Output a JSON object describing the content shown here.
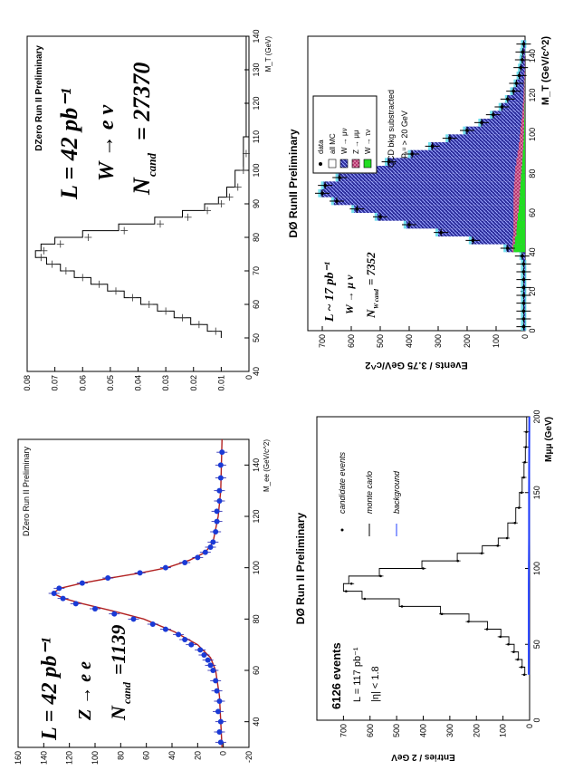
{
  "chart_data": [
    {
      "id": "z_ee",
      "type": "line",
      "title": "DZero Run II Preliminary",
      "xlabel": "M_ee (GeV/c^2)",
      "ylabel": "",
      "xlim": [
        30,
        150
      ],
      "ylim": [
        -20,
        160
      ],
      "x_ticks": [
        "40",
        "60",
        "80",
        "100",
        "120",
        "140"
      ],
      "y_ticks": [
        "-20",
        "0",
        "20",
        "40",
        "60",
        "80",
        "100",
        "120",
        "140",
        "160"
      ],
      "annotations": [
        "L = 42 pb⁻¹",
        "Z → e e",
        "N",
        "cand",
        "=1139"
      ],
      "series": [
        {
          "name": "data",
          "points": [
            [
              32,
              2
            ],
            [
              36,
              3
            ],
            [
              40,
              2
            ],
            [
              44,
              4
            ],
            [
              48,
              3
            ],
            [
              52,
              5
            ],
            [
              56,
              6
            ],
            [
              60,
              8
            ],
            [
              62,
              10
            ],
            [
              64,
              12
            ],
            [
              66,
              15
            ],
            [
              68,
              18
            ],
            [
              70,
              25
            ],
            [
              72,
              30
            ],
            [
              74,
              35
            ],
            [
              76,
              45
            ],
            [
              78,
              55
            ],
            [
              80,
              70
            ],
            [
              82,
              85
            ],
            [
              84,
              100
            ],
            [
              86,
              115
            ],
            [
              88,
              125
            ],
            [
              90,
              132
            ],
            [
              92,
              128
            ],
            [
              94,
              110
            ],
            [
              96,
              90
            ],
            [
              98,
              65
            ],
            [
              100,
              45
            ],
            [
              102,
              30
            ],
            [
              104,
              20
            ],
            [
              106,
              14
            ],
            [
              108,
              10
            ],
            [
              110,
              8
            ],
            [
              114,
              6
            ],
            [
              118,
              5
            ],
            [
              122,
              5
            ],
            [
              126,
              3
            ],
            [
              130,
              3
            ],
            [
              135,
              2
            ],
            [
              140,
              2
            ],
            [
              145,
              1
            ]
          ]
        },
        {
          "name": "fit",
          "points": [
            [
              30,
              1
            ],
            [
              40,
              2
            ],
            [
              50,
              3
            ],
            [
              60,
              6
            ],
            [
              65,
              10
            ],
            [
              70,
              20
            ],
            [
              75,
              38
            ],
            [
              80,
              62
            ],
            [
              83,
              85
            ],
            [
              86,
              110
            ],
            [
              88,
              124
            ],
            [
              90,
              133
            ],
            [
              92,
              127
            ],
            [
              94,
              110
            ],
            [
              96,
              88
            ],
            [
              98,
              64
            ],
            [
              100,
              44
            ],
            [
              103,
              26
            ],
            [
              106,
              14
            ],
            [
              110,
              8
            ],
            [
              120,
              4
            ],
            [
              130,
              2
            ],
            [
              150,
              1
            ]
          ]
        }
      ]
    },
    {
      "id": "w_enu",
      "type": "line",
      "title": "DZero Run II Preliminary",
      "xlabel": "M_T (GeV)",
      "ylabel": "",
      "xlim": [
        40,
        140
      ],
      "ylim": [
        0,
        0.08
      ],
      "x_ticks": [
        "40",
        "50",
        "60",
        "70",
        "80",
        "90",
        "100",
        "110",
        "120",
        "130",
        "140"
      ],
      "y_ticks": [
        "0",
        "0.01",
        "0.02",
        "0.03",
        "0.04",
        "0.05",
        "0.06",
        "0.07",
        "0.08"
      ],
      "annotations": [
        "L = 42 pb⁻¹",
        "W → e ν",
        "N",
        "cand",
        "= 27370"
      ],
      "series": [
        {
          "name": "data",
          "points": [
            [
              52,
              0.012
            ],
            [
              54,
              0.018
            ],
            [
              56,
              0.024
            ],
            [
              58,
              0.03
            ],
            [
              60,
              0.036
            ],
            [
              62,
              0.042
            ],
            [
              64,
              0.048
            ],
            [
              66,
              0.054
            ],
            [
              68,
              0.06
            ],
            [
              70,
              0.066
            ],
            [
              72,
              0.071
            ],
            [
              74,
              0.075
            ],
            [
              76,
              0.074
            ],
            [
              78,
              0.068
            ],
            [
              80,
              0.058
            ],
            [
              82,
              0.045
            ],
            [
              84,
              0.032
            ],
            [
              86,
              0.022
            ],
            [
              88,
              0.015
            ],
            [
              90,
              0.01
            ],
            [
              92,
              0.007
            ],
            [
              95,
              0.004
            ],
            [
              100,
              0.002
            ],
            [
              105,
              0.001
            ]
          ]
        },
        {
          "name": "monte carlo",
          "points": [
            [
              50,
              0.01
            ],
            [
              52,
              0.015
            ],
            [
              54,
              0.021
            ],
            [
              56,
              0.027
            ],
            [
              58,
              0.033
            ],
            [
              60,
              0.039
            ],
            [
              62,
              0.045
            ],
            [
              64,
              0.051
            ],
            [
              66,
              0.057
            ],
            [
              68,
              0.063
            ],
            [
              70,
              0.068
            ],
            [
              72,
              0.073
            ],
            [
              74,
              0.077
            ],
            [
              76,
              0.075
            ],
            [
              78,
              0.07
            ],
            [
              80,
              0.06
            ],
            [
              82,
              0.047
            ],
            [
              84,
              0.034
            ],
            [
              86,
              0.024
            ],
            [
              88,
              0.016
            ],
            [
              90,
              0.011
            ],
            [
              92,
              0.008
            ],
            [
              95,
              0.005
            ],
            [
              100,
              0.002
            ],
            [
              110,
              0.001
            ],
            [
              140,
              0.0
            ]
          ]
        }
      ]
    },
    {
      "id": "z_mumu",
      "type": "line",
      "title": "DØ Run II Preliminary",
      "xlabel": "Mμμ (GeV)",
      "ylabel": "Entries / 2 GeV",
      "xlim": [
        0,
        200
      ],
      "ylim": [
        0,
        800
      ],
      "x_ticks": [
        "0",
        "50",
        "100",
        "150",
        "200"
      ],
      "y_ticks": [
        "0",
        "100",
        "200",
        "300",
        "400",
        "500",
        "600",
        "700"
      ],
      "annotations": [
        "6126 events",
        "L = 117 pb⁻¹",
        "|η| < 1.8"
      ],
      "legend": [
        "candidate events",
        "monte carlo",
        "background"
      ],
      "series": [
        {
          "name": "candidate events",
          "points": [
            [
              30,
              20
            ],
            [
              35,
              30
            ],
            [
              40,
              45
            ],
            [
              45,
              60
            ],
            [
              50,
              80
            ],
            [
              55,
              110
            ],
            [
              60,
              160
            ],
            [
              65,
              230
            ],
            [
              70,
              330
            ],
            [
              75,
              480
            ],
            [
              80,
              620
            ],
            [
              85,
              690
            ],
            [
              90,
              670
            ],
            [
              95,
              560
            ],
            [
              100,
              400
            ],
            [
              105,
              270
            ],
            [
              110,
              180
            ],
            [
              115,
              120
            ],
            [
              120,
              85
            ],
            [
              130,
              55
            ],
            [
              140,
              40
            ],
            [
              150,
              30
            ],
            [
              160,
              22
            ],
            [
              170,
              18
            ],
            [
              180,
              14
            ],
            [
              190,
              12
            ]
          ]
        },
        {
          "name": "monte carlo",
          "points": [
            [
              30,
              18
            ],
            [
              35,
              28
            ],
            [
              40,
              42
            ],
            [
              45,
              58
            ],
            [
              50,
              78
            ],
            [
              55,
              108
            ],
            [
              60,
              158
            ],
            [
              65,
              228
            ],
            [
              70,
              335
            ],
            [
              75,
              490
            ],
            [
              80,
              630
            ],
            [
              85,
              700
            ],
            [
              90,
              680
            ],
            [
              95,
              565
            ],
            [
              100,
              405
            ],
            [
              105,
              272
            ],
            [
              110,
              178
            ],
            [
              115,
              118
            ],
            [
              120,
              82
            ],
            [
              130,
              52
            ],
            [
              140,
              38
            ],
            [
              150,
              28
            ],
            [
              160,
              21
            ],
            [
              170,
              16
            ],
            [
              180,
              13
            ],
            [
              190,
              11
            ],
            [
              200,
              9
            ]
          ]
        },
        {
          "name": "background",
          "points": [
            [
              30,
              3
            ],
            [
              60,
              3
            ],
            [
              90,
              3
            ],
            [
              120,
              2
            ],
            [
              150,
              2
            ],
            [
              200,
              1
            ]
          ]
        }
      ]
    },
    {
      "id": "w_munu",
      "type": "bar",
      "title": "DØ RunII Preliminary",
      "xlabel": "M_T (GeV/c^2)",
      "ylabel": "Events / 3.75 GeV/c^2",
      "xlim": [
        0,
        150
      ],
      "ylim": [
        0,
        750
      ],
      "x_ticks": [
        "0",
        "20",
        "40",
        "60",
        "80",
        "100",
        "120",
        "140"
      ],
      "y_ticks": [
        "0",
        "100",
        "200",
        "300",
        "400",
        "500",
        "600",
        "700"
      ],
      "annotations": [
        "L ~ 17 pb⁻¹",
        "W → μ ν",
        "N",
        "W cand",
        "= 7352",
        "QCD bkg substracted",
        "Pₜᵘ > 20 GeV"
      ],
      "legend": [
        "data",
        "all MC",
        "W → μν",
        "Z → μμ",
        "W → τν"
      ],
      "series": [
        {
          "name": "data",
          "points": [
            [
              2,
              5
            ],
            [
              6,
              5
            ],
            [
              10,
              5
            ],
            [
              14,
              5
            ],
            [
              18,
              5
            ],
            [
              22,
              5
            ],
            [
              26,
              5
            ],
            [
              30,
              5
            ],
            [
              34,
              5
            ],
            [
              38,
              10
            ],
            [
              42,
              60
            ],
            [
              46,
              180
            ],
            [
              50,
              290
            ],
            [
              54,
              400
            ],
            [
              58,
              500
            ],
            [
              62,
              580
            ],
            [
              66,
              650
            ],
            [
              70,
              700
            ],
            [
              74,
              690
            ],
            [
              78,
              640
            ],
            [
              82,
              560
            ],
            [
              86,
              470
            ],
            [
              90,
              390
            ],
            [
              94,
              320
            ],
            [
              98,
              260
            ],
            [
              102,
              200
            ],
            [
              106,
              150
            ],
            [
              110,
              110
            ],
            [
              114,
              80
            ],
            [
              118,
              60
            ],
            [
              122,
              40
            ],
            [
              126,
              30
            ],
            [
              130,
              20
            ],
            [
              134,
              15
            ],
            [
              138,
              10
            ],
            [
              142,
              8
            ],
            [
              146,
              5
            ]
          ]
        },
        {
          "name": "all MC",
          "values": [
            5,
            5,
            5,
            5,
            5,
            5,
            5,
            5,
            5,
            10,
            65,
            185,
            300,
            410,
            510,
            590,
            660,
            705,
            695,
            645,
            565,
            475,
            395,
            325,
            265,
            205,
            152,
            112,
            82,
            60,
            42,
            30,
            20,
            15,
            10,
            8,
            5
          ]
        },
        {
          "name": "Z → μμ",
          "values": [
            0,
            0,
            0,
            0,
            0,
            0,
            0,
            0,
            0,
            0,
            5,
            8,
            10,
            12,
            15,
            18,
            20,
            22,
            22,
            22,
            22,
            20,
            18,
            16,
            14,
            12,
            10,
            8,
            6,
            5,
            4,
            3,
            2,
            1,
            1,
            1,
            0
          ]
        },
        {
          "name": "W → τν",
          "values": [
            0,
            0,
            0,
            0,
            0,
            0,
            0,
            0,
            0,
            0,
            40,
            35,
            30,
            28,
            25,
            22,
            20,
            18,
            16,
            14,
            12,
            10,
            8,
            6,
            5,
            4,
            3,
            2,
            2,
            1,
            1,
            1,
            0,
            0,
            0,
            0,
            0
          ]
        }
      ]
    }
  ]
}
